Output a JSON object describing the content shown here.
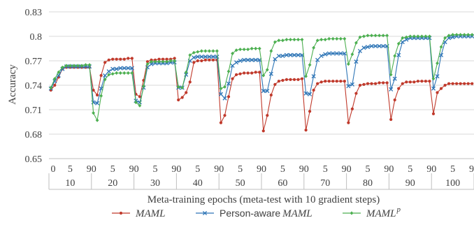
{
  "chart_data": {
    "type": "line",
    "xlabel": "Meta-training epochs (meta-test with 10 gradient steps)",
    "ylabel": "Accuracy",
    "ylim": [
      0.65,
      0.83
    ],
    "yticks": [
      "0.65",
      "0.68",
      "0.71",
      "0.74",
      "0.77",
      "0.8",
      "0.83"
    ],
    "grid": true,
    "legend_position": "bottom",
    "x_inner_tick_labels": [
      "0",
      "5",
      "90",
      "5",
      "90",
      "5",
      "90",
      "5",
      "90",
      "5",
      "90",
      "5",
      "90",
      "5",
      "90",
      "5",
      "90",
      "5",
      "90",
      "5",
      "9"
    ],
    "groups": [
      "10",
      "20",
      "30",
      "40",
      "50",
      "60",
      "70",
      "80",
      "90",
      "100"
    ],
    "points_per_group": 11,
    "series": [
      {
        "name": "MAML",
        "name_prefix": "",
        "name_italic": "MAML",
        "name_sup": "",
        "marker": "circle",
        "color": "#c0392b",
        "groups": [
          [
            0.734,
            0.74,
            0.75,
            0.76,
            0.762,
            0.762,
            0.762,
            0.762,
            0.762,
            0.762,
            0.762
          ],
          [
            0.734,
            0.728,
            0.752,
            0.768,
            0.771,
            0.772,
            0.772,
            0.772,
            0.772,
            0.773,
            0.773
          ],
          [
            0.729,
            0.726,
            0.746,
            0.769,
            0.771,
            0.771,
            0.772,
            0.772,
            0.772,
            0.772,
            0.773
          ],
          [
            0.722,
            0.725,
            0.731,
            0.744,
            0.768,
            0.77,
            0.77,
            0.771,
            0.771,
            0.771,
            0.771
          ],
          [
            0.694,
            0.703,
            0.726,
            0.748,
            0.753,
            0.754,
            0.755,
            0.755,
            0.755,
            0.756,
            0.756
          ],
          [
            0.684,
            0.703,
            0.728,
            0.741,
            0.745,
            0.746,
            0.747,
            0.747,
            0.747,
            0.747,
            0.748
          ],
          [
            0.685,
            0.708,
            0.734,
            0.742,
            0.744,
            0.745,
            0.745,
            0.745,
            0.745,
            0.745,
            0.745
          ],
          [
            0.694,
            0.711,
            0.73,
            0.74,
            0.741,
            0.742,
            0.742,
            0.742,
            0.743,
            0.743,
            0.743
          ],
          [
            0.698,
            0.722,
            0.736,
            0.742,
            0.744,
            0.744,
            0.744,
            0.745,
            0.745,
            0.745,
            0.745
          ],
          [
            0.705,
            0.731,
            0.736,
            0.74,
            0.742,
            0.742,
            0.742,
            0.742,
            0.742,
            0.742,
            0.742
          ]
        ]
      },
      {
        "name": "Person-aware MAML",
        "name_prefix": "Person-aware ",
        "name_italic": "MAML",
        "name_sup": "",
        "marker": "x",
        "color": "#2e75b6",
        "groups": [
          [
            0.736,
            0.745,
            0.752,
            0.76,
            0.763,
            0.763,
            0.763,
            0.763,
            0.763,
            0.763,
            0.763
          ],
          [
            0.719,
            0.718,
            0.736,
            0.752,
            0.757,
            0.76,
            0.76,
            0.761,
            0.761,
            0.761,
            0.761
          ],
          [
            0.721,
            0.719,
            0.737,
            0.762,
            0.766,
            0.767,
            0.767,
            0.767,
            0.767,
            0.768,
            0.768
          ],
          [
            0.737,
            0.737,
            0.753,
            0.77,
            0.774,
            0.775,
            0.775,
            0.775,
            0.775,
            0.775,
            0.775
          ],
          [
            0.729,
            0.724,
            0.742,
            0.764,
            0.768,
            0.77,
            0.771,
            0.771,
            0.771,
            0.771,
            0.771
          ],
          [
            0.733,
            0.733,
            0.754,
            0.772,
            0.776,
            0.776,
            0.777,
            0.777,
            0.777,
            0.777,
            0.777
          ],
          [
            0.73,
            0.729,
            0.751,
            0.771,
            0.776,
            0.778,
            0.779,
            0.779,
            0.779,
            0.779,
            0.779
          ],
          [
            0.739,
            0.741,
            0.769,
            0.782,
            0.786,
            0.787,
            0.788,
            0.788,
            0.788,
            0.788,
            0.788
          ],
          [
            0.735,
            0.748,
            0.777,
            0.793,
            0.796,
            0.798,
            0.798,
            0.798,
            0.798,
            0.798,
            0.798
          ],
          [
            0.736,
            0.751,
            0.777,
            0.793,
            0.798,
            0.799,
            0.8,
            0.8,
            0.8,
            0.8,
            0.8
          ]
        ]
      },
      {
        "name": "MAML^p",
        "name_prefix": "",
        "name_italic": "MAML",
        "name_sup": "p",
        "marker": "diamond",
        "color": "#4caf50",
        "groups": [
          [
            0.737,
            0.748,
            0.756,
            0.762,
            0.764,
            0.764,
            0.764,
            0.764,
            0.764,
            0.765,
            0.765
          ],
          [
            0.706,
            0.697,
            0.727,
            0.747,
            0.753,
            0.754,
            0.755,
            0.755,
            0.755,
            0.755,
            0.755
          ],
          [
            0.719,
            0.715,
            0.739,
            0.766,
            0.769,
            0.769,
            0.769,
            0.769,
            0.769,
            0.77,
            0.77
          ],
          [
            0.738,
            0.737,
            0.756,
            0.777,
            0.78,
            0.781,
            0.782,
            0.782,
            0.782,
            0.782,
            0.782
          ],
          [
            0.736,
            0.738,
            0.757,
            0.779,
            0.783,
            0.784,
            0.784,
            0.784,
            0.785,
            0.785,
            0.785
          ],
          [
            0.752,
            0.759,
            0.782,
            0.793,
            0.795,
            0.795,
            0.796,
            0.796,
            0.796,
            0.796,
            0.796
          ],
          [
            0.751,
            0.765,
            0.786,
            0.795,
            0.796,
            0.796,
            0.797,
            0.797,
            0.797,
            0.797,
            0.797
          ],
          [
            0.766,
            0.778,
            0.792,
            0.799,
            0.8,
            0.801,
            0.801,
            0.801,
            0.801,
            0.801,
            0.801
          ],
          [
            0.753,
            0.776,
            0.791,
            0.798,
            0.799,
            0.8,
            0.8,
            0.8,
            0.8,
            0.8,
            0.8
          ],
          [
            0.748,
            0.767,
            0.787,
            0.798,
            0.801,
            0.802,
            0.802,
            0.802,
            0.802,
            0.802,
            0.802
          ]
        ]
      }
    ]
  }
}
